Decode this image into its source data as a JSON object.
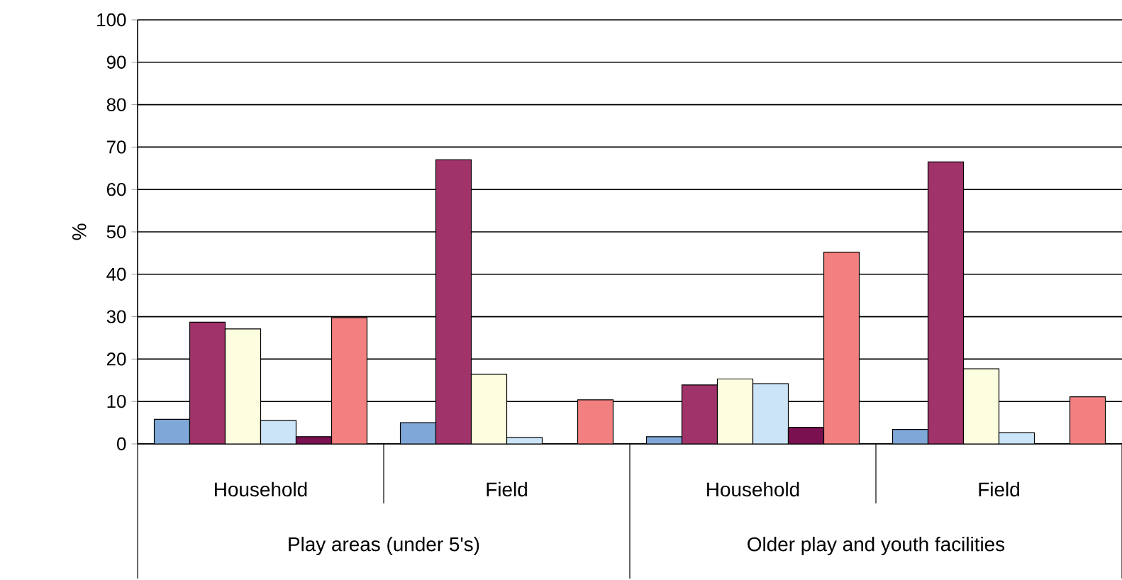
{
  "chart_data": {
    "type": "bar",
    "ylabel": "%",
    "categories": [
      "Household",
      "Field",
      "Household",
      "Field"
    ],
    "annotations": [
      "Play areas (under 5's)",
      "Older play and youth facilities"
    ],
    "series": [
      {
        "color": "#7fa8d8",
        "values": [
          5.8,
          5,
          1.7,
          3.4
        ]
      },
      {
        "color": "#a0336a",
        "values": [
          28.7,
          67,
          13.9,
          66.5
        ]
      },
      {
        "color": "#fdfde0",
        "values": [
          27.1,
          16.4,
          15.3,
          17.7
        ]
      },
      {
        "color": "#cce4f7",
        "values": [
          5.5,
          1.5,
          14.2,
          2.6
        ]
      },
      {
        "color": "#7a1050",
        "values": [
          1.7,
          null,
          3.9,
          null
        ]
      },
      {
        "color": "#f28080",
        "values": [
          29.8,
          10.4,
          45.2,
          11.1
        ]
      }
    ],
    "ylim": [
      0,
      100
    ],
    "yticks": [
      0,
      10,
      20,
      30,
      40,
      50,
      60,
      70,
      80,
      90,
      100
    ],
    "grid": "y"
  }
}
